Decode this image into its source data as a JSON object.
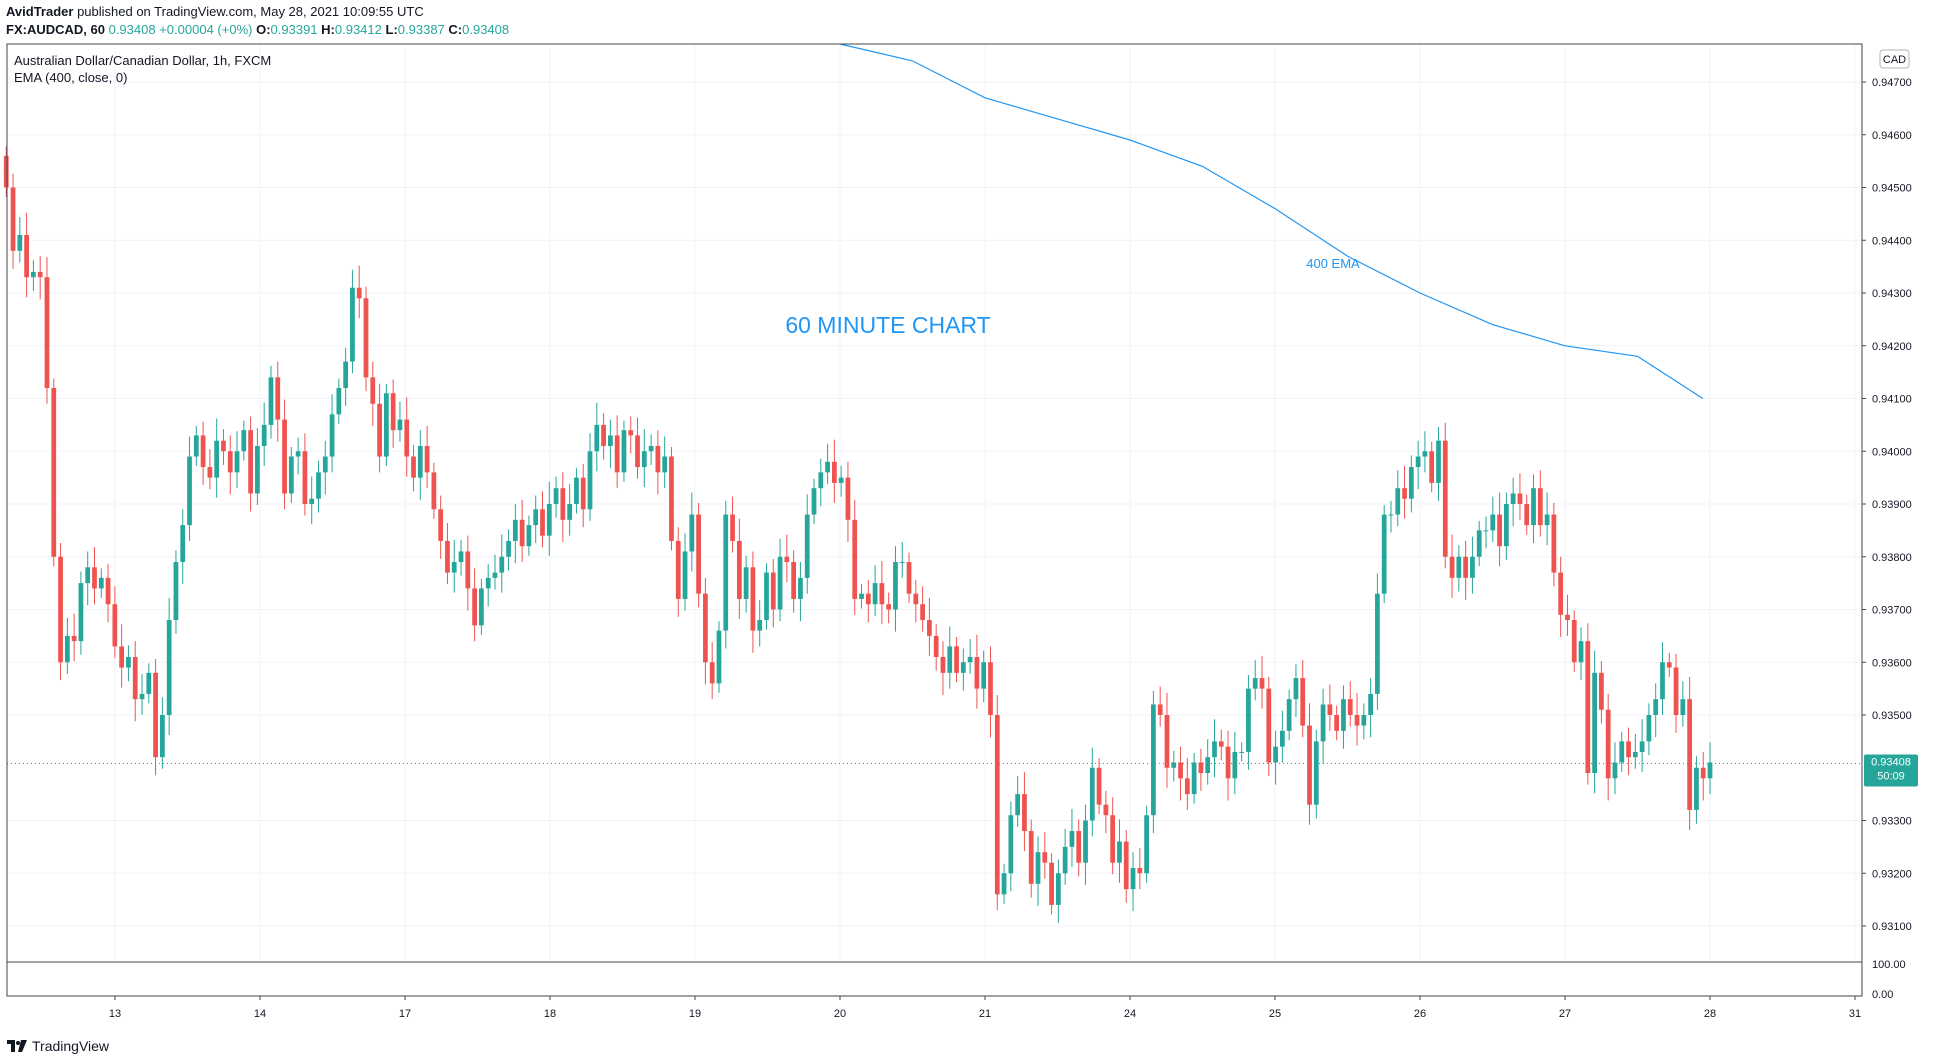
{
  "header": {
    "author": "AvidTrader",
    "published": "published on TradingView.com, May 28, 2021 10:09:55 UTC",
    "symbol": "FX:AUDCAD, 60",
    "last_value": "0.93408",
    "change": "+0.00004 (+0%)",
    "o_label": "O:",
    "o_value": "0.93391",
    "h_label": "H:",
    "h_value": "0.93412",
    "l_label": "L:",
    "l_value": "0.93387",
    "c_label": "C:",
    "c_value": "0.93408"
  },
  "legend": {
    "title": "Australian Dollar/Canadian Dollar, 1h, FXCM",
    "ema": "EMA (400, close, 0)"
  },
  "currency_badge": "CAD",
  "price_tag": {
    "value": "0.93408",
    "countdown": "50:09"
  },
  "footer": {
    "brand": "TradingView"
  },
  "colors": {
    "up": "#26a69a",
    "down": "#ef5350",
    "ema": "#2196f3",
    "annotation": "#2196f3",
    "grid": "#f0f3fa",
    "axis": "#131722"
  },
  "chart_data": {
    "type": "candlestick",
    "title": "60 MINUTE CHART",
    "annotation": "400 EMA",
    "xlabel": "",
    "ylabel": "",
    "y_ticks": [
      "0.94700",
      "0.94600",
      "0.94500",
      "0.94400",
      "0.94300",
      "0.94200",
      "0.94100",
      "0.94000",
      "0.93900",
      "0.93800",
      "0.93700",
      "0.93600",
      "0.93500",
      "0.93300",
      "0.93200",
      "0.93100"
    ],
    "x_ticks": [
      "13",
      "14",
      "17",
      "18",
      "19",
      "20",
      "21",
      "24",
      "25",
      "26",
      "27",
      "28",
      "31"
    ],
    "ylim": [
      0.9302,
      0.9479
    ],
    "subpanel_ticks": [
      "100.00",
      "0.00"
    ],
    "grid": true,
    "series": [
      {
        "name": "AUDCAD",
        "candles_per_day": 24,
        "start_day_index": -0.75,
        "close": [
          0.945,
          0.9438,
          0.9441,
          0.9433,
          0.9434,
          0.9433,
          0.9412,
          0.938,
          0.936,
          0.9365,
          0.9364,
          0.9375,
          0.9378,
          0.9374,
          0.9376,
          0.9371,
          0.9363,
          0.9359,
          0.9361,
          0.9353,
          0.9354,
          0.9358,
          0.9342,
          0.935,
          0.9368,
          0.9379,
          0.9386,
          0.9399,
          0.9403,
          0.9397,
          0.9395,
          0.9402,
          0.94,
          0.9396,
          0.94,
          0.9404,
          0.9392,
          0.9401,
          0.9405,
          0.9414,
          0.9406,
          0.9392,
          0.9399,
          0.94,
          0.939,
          0.9391,
          0.9396,
          0.9399,
          0.9407,
          0.9412,
          0.9417,
          0.9431,
          0.9429,
          0.9414,
          0.9409,
          0.9399,
          0.9411,
          0.9404,
          0.9406,
          0.9399,
          0.9395,
          0.9401,
          0.9396,
          0.9389,
          0.9383,
          0.9377,
          0.9379,
          0.9381,
          0.9374,
          0.9367,
          0.9374,
          0.9376,
          0.9377,
          0.938,
          0.9383,
          0.9387,
          0.9382,
          0.9386,
          0.9389,
          0.9384,
          0.939,
          0.9393,
          0.9387,
          0.939,
          0.9395,
          0.9389,
          0.94,
          0.9405,
          0.9401,
          0.9403,
          0.9396,
          0.9404,
          0.9403,
          0.9397,
          0.94,
          0.9401,
          0.9396,
          0.9399,
          0.9383,
          0.9372,
          0.9381,
          0.9388,
          0.9373,
          0.936,
          0.9356,
          0.9366,
          0.9388,
          0.9383,
          0.9372,
          0.9378,
          0.9366,
          0.9368,
          0.9377,
          0.937,
          0.938,
          0.9379,
          0.9372,
          0.9376,
          0.9388,
          0.9393,
          0.9396,
          0.9398,
          0.9394,
          0.9395,
          0.9387,
          0.9372,
          0.9373,
          0.9371,
          0.9375,
          0.9371,
          0.937,
          0.9379,
          0.9379,
          0.9373,
          0.9371,
          0.9368,
          0.9365,
          0.9361,
          0.9358,
          0.9363,
          0.9358,
          0.936,
          0.9361,
          0.9355,
          0.936,
          0.935,
          0.9316,
          0.932,
          0.9331,
          0.9335,
          0.9328,
          0.9318,
          0.9324,
          0.9322,
          0.9314,
          0.932,
          0.9325,
          0.9328,
          0.9322,
          0.933,
          0.934,
          0.9333,
          0.9331,
          0.9322,
          0.9326,
          0.9317,
          0.9321,
          0.932,
          0.9331,
          0.9352,
          0.935,
          0.934,
          0.9341,
          0.9338,
          0.9335,
          0.9341,
          0.9339,
          0.9342,
          0.9345,
          0.9344,
          0.9338,
          0.9343,
          0.9343,
          0.9355,
          0.9357,
          0.9355,
          0.9341,
          0.9344,
          0.9347,
          0.9353,
          0.9357,
          0.9348,
          0.9333,
          0.9345,
          0.9352,
          0.935,
          0.9347,
          0.9353,
          0.935,
          0.9348,
          0.935,
          0.9354,
          0.9373,
          0.9388,
          0.9388,
          0.9393,
          0.9391,
          0.9397,
          0.9399,
          0.94,
          0.9394,
          0.9402,
          0.938,
          0.9376,
          0.938,
          0.9376,
          0.938,
          0.9385,
          0.9385,
          0.9388,
          0.9382,
          0.939,
          0.9392,
          0.939,
          0.9386,
          0.9393,
          0.9386,
          0.9388,
          0.9377,
          0.9369,
          0.9368,
          0.936,
          0.9364,
          0.9339,
          0.9358,
          0.9351,
          0.9338,
          0.9341,
          0.9345,
          0.9342,
          0.9343,
          0.9345,
          0.935,
          0.9353,
          0.936,
          0.9359,
          0.935,
          0.9353,
          0.9332,
          0.934,
          0.9338,
          0.9341
        ]
      },
      {
        "name": "EMA 400",
        "x": [
          5.0,
          5.5,
          6.0,
          6.5,
          7.0,
          7.5,
          8.0,
          8.5,
          9.0,
          9.5,
          10.0,
          10.5,
          10.95
        ],
        "values": [
          0.9479,
          0.9474,
          0.9467,
          0.9463,
          0.9459,
          0.9454,
          0.9446,
          0.9437,
          0.943,
          0.9424,
          0.942,
          0.9418,
          0.941
        ]
      }
    ]
  }
}
